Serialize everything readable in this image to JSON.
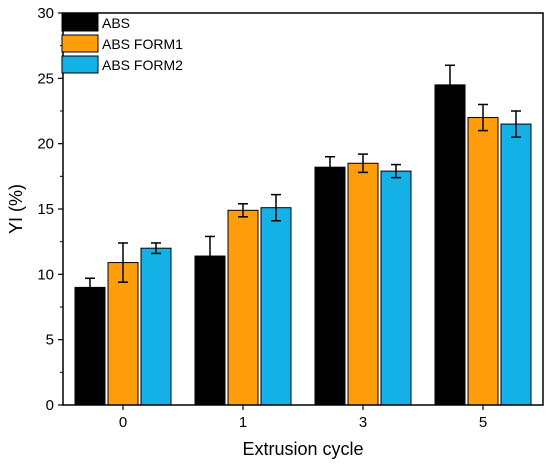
{
  "chart_data": {
    "type": "bar",
    "title": "",
    "xlabel": "Extrusion cycle",
    "ylabel": "YI (%)",
    "categories": [
      "0",
      "1",
      "3",
      "5"
    ],
    "ylim": [
      0,
      30
    ],
    "yticks": [
      0,
      5,
      10,
      15,
      20,
      25,
      30
    ],
    "grid": false,
    "legend_position": "top-left",
    "series": [
      {
        "name": "ABS",
        "color": "#000000",
        "values": [
          9.0,
          11.4,
          18.2,
          24.5
        ],
        "errors": [
          0.7,
          1.5,
          0.8,
          1.5
        ]
      },
      {
        "name": "ABS FORM1",
        "color": "#ff9e0a",
        "values": [
          10.9,
          14.9,
          18.5,
          22.0
        ],
        "errors": [
          1.5,
          0.5,
          0.7,
          1.0
        ]
      },
      {
        "name": "ABS FORM2",
        "color": "#13b1e6",
        "values": [
          12.0,
          15.1,
          17.9,
          21.5
        ],
        "errors": [
          0.4,
          1.0,
          0.5,
          1.0
        ]
      }
    ]
  }
}
